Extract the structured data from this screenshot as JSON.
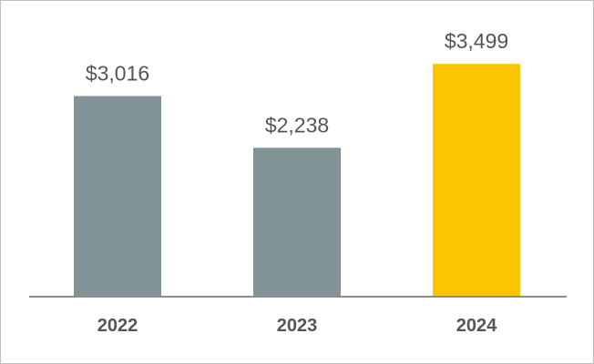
{
  "chart_data": {
    "type": "bar",
    "categories": [
      "2022",
      "2023",
      "2024"
    ],
    "values": [
      3016,
      2238,
      3499
    ],
    "value_labels": [
      "$3,016",
      "$2,238",
      "$3,499"
    ],
    "bar_colors": [
      "#829395",
      "#829395",
      "#f9c600"
    ],
    "axis_color": "#8c8c8c",
    "grid": false,
    "legend": "none"
  }
}
